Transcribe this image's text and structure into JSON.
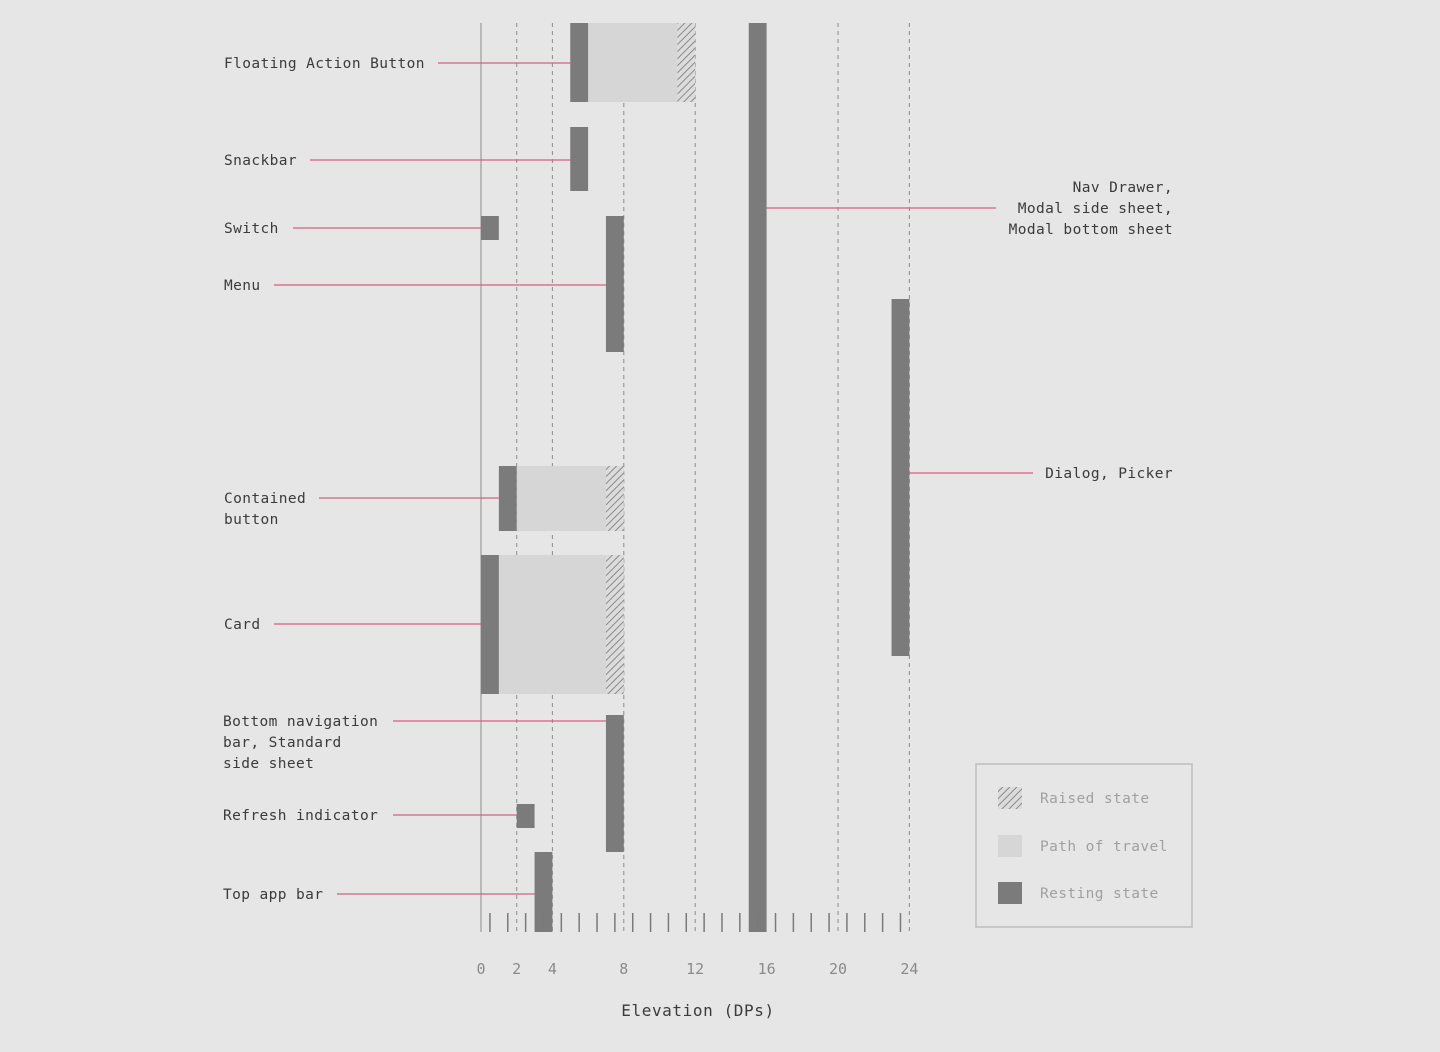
{
  "colors": {
    "background": "#e6e6e6",
    "resting": "#7b7b7b",
    "path": "#d6d6d6",
    "raised_hatch": "#8a8a8a",
    "leader": "#d4607e",
    "grid": "#8c8c8c",
    "label": "#3b3b3b",
    "tick_label": "#8a8a8a"
  },
  "chart_data": {
    "type": "range-bar",
    "xlabel": "Elevation (DPs)",
    "xlim": [
      0,
      24
    ],
    "x_ticks": [
      0,
      2,
      4,
      8,
      12,
      16,
      20,
      24
    ],
    "minor_ticks": [
      1,
      2,
      3,
      4,
      5,
      6,
      7,
      8,
      9,
      10,
      11,
      12,
      13,
      14,
      15,
      16,
      17,
      18,
      19,
      20,
      21,
      22,
      23,
      24
    ],
    "gridlines": [
      2,
      4,
      8,
      12,
      20,
      24
    ],
    "components": [
      {
        "label": [
          "Floating Action Button"
        ],
        "resting": [
          5,
          6
        ],
        "path": [
          6,
          11
        ],
        "raised": [
          11,
          12
        ],
        "label_side": "left"
      },
      {
        "label": [
          "Snackbar"
        ],
        "resting": [
          5,
          6
        ],
        "label_side": "left"
      },
      {
        "label": [
          "Switch"
        ],
        "resting": [
          0,
          1
        ],
        "label_side": "left"
      },
      {
        "label": [
          "Menu"
        ],
        "resting": [
          7,
          8
        ],
        "label_side": "left"
      },
      {
        "label": [
          "Nav Drawer,",
          "Modal side sheet,",
          "Modal bottom sheet"
        ],
        "resting": [
          15,
          16
        ],
        "label_side": "right"
      },
      {
        "label": [
          "Dialog, Picker"
        ],
        "resting": [
          23,
          24
        ],
        "label_side": "right"
      },
      {
        "label": [
          "Contained",
          "button"
        ],
        "resting": [
          1,
          2
        ],
        "path": [
          2,
          7
        ],
        "raised": [
          7,
          8
        ],
        "label_side": "left"
      },
      {
        "label": [
          "Card"
        ],
        "resting": [
          0,
          1
        ],
        "path": [
          1,
          7
        ],
        "raised": [
          7,
          8
        ],
        "label_side": "left"
      },
      {
        "label": [
          "Bottom navigation",
          "bar, Standard",
          "side sheet"
        ],
        "resting": [
          7,
          8
        ],
        "label_side": "left"
      },
      {
        "label": [
          "Refresh indicator"
        ],
        "resting": [
          2,
          3
        ],
        "label_side": "left"
      },
      {
        "label": [
          "Top app bar"
        ],
        "resting": [
          3,
          4
        ],
        "label_side": "left"
      }
    ],
    "legend": {
      "position": "bottom-right",
      "items": [
        {
          "name": "Raised state",
          "swatch": "hatch"
        },
        {
          "name": "Path of travel",
          "swatch": "path"
        },
        {
          "name": "Resting state",
          "swatch": "resting"
        }
      ]
    }
  }
}
